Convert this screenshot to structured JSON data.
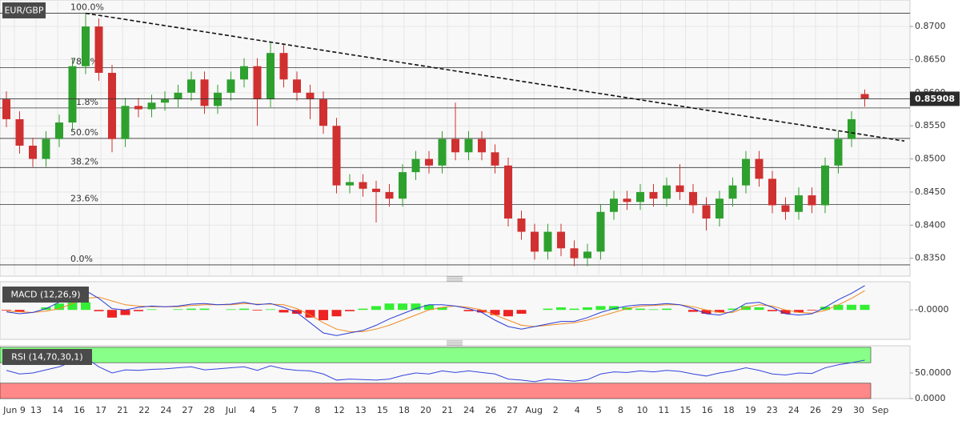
{
  "chart_data": {
    "type": "candlestick",
    "title": "EUR/GBP",
    "x_labels": [
      "Jun 9",
      "13",
      "14",
      "16",
      "17",
      "21",
      "22",
      "24",
      "27",
      "28",
      "Jul",
      "4",
      "5",
      "7",
      "8",
      "12",
      "13",
      "15",
      "18",
      "20",
      "21",
      "24",
      "26",
      "27",
      "Aug",
      "2",
      "4",
      "5",
      "8",
      "10",
      "11",
      "15",
      "16",
      "18",
      "19",
      "23",
      "24",
      "26",
      "29",
      "30",
      "Sep"
    ],
    "open": [
      0.859,
      0.856,
      0.852,
      0.85,
      0.853,
      0.8555,
      0.864,
      0.87,
      0.863,
      0.853,
      0.858,
      0.8575,
      0.8585,
      0.859,
      0.86,
      0.862,
      0.858,
      0.86,
      0.862,
      0.864,
      0.859,
      0.866,
      0.862,
      0.86,
      0.859,
      0.855,
      0.846,
      0.8465,
      0.8455,
      0.845,
      0.844,
      0.848,
      0.85,
      0.849,
      0.853,
      0.851,
      0.853,
      0.851,
      0.849,
      0.841,
      0.839,
      0.836,
      0.839,
      0.8365,
      0.835,
      0.836,
      0.842,
      0.844,
      0.8435,
      0.845,
      0.844,
      0.846,
      0.845,
      0.843,
      0.841,
      0.844,
      0.846,
      0.85,
      0.847,
      0.843,
      0.842,
      0.8445,
      0.843,
      0.849,
      0.853,
      0.8598
    ],
    "high": [
      0.8602,
      0.8572,
      0.8532,
      0.8542,
      0.8567,
      0.8652,
      0.872,
      0.8712,
      0.8642,
      0.8592,
      0.8592,
      0.8597,
      0.8602,
      0.8612,
      0.8632,
      0.8632,
      0.8612,
      0.8632,
      0.8652,
      0.8652,
      0.8675,
      0.8672,
      0.8632,
      0.8612,
      0.8602,
      0.8562,
      0.8477,
      0.8477,
      0.8467,
      0.8462,
      0.8492,
      0.8512,
      0.8512,
      0.8542,
      0.8585,
      0.8542,
      0.8542,
      0.8522,
      0.8502,
      0.8422,
      0.8402,
      0.8402,
      0.8402,
      0.8377,
      0.8372,
      0.8432,
      0.8452,
      0.8452,
      0.8462,
      0.8462,
      0.8472,
      0.8492,
      0.8462,
      0.8442,
      0.8452,
      0.8472,
      0.8512,
      0.8512,
      0.8482,
      0.8442,
      0.8457,
      0.8457,
      0.8502,
      0.8542,
      0.8572,
      0.8605
    ],
    "low": [
      0.8548,
      0.8508,
      0.8488,
      0.8488,
      0.8518,
      0.8543,
      0.8628,
      0.8618,
      0.851,
      0.8518,
      0.8563,
      0.8563,
      0.8573,
      0.8578,
      0.8588,
      0.8568,
      0.8568,
      0.8588,
      0.8608,
      0.855,
      0.8578,
      0.8608,
      0.8588,
      0.856,
      0.8538,
      0.8448,
      0.8448,
      0.8443,
      0.8404,
      0.8428,
      0.8428,
      0.8468,
      0.8478,
      0.8478,
      0.8498,
      0.8498,
      0.8498,
      0.8478,
      0.8398,
      0.8378,
      0.8348,
      0.8348,
      0.8353,
      0.8338,
      0.8338,
      0.8348,
      0.8408,
      0.8423,
      0.8423,
      0.8428,
      0.8428,
      0.8438,
      0.8418,
      0.8392,
      0.8398,
      0.8428,
      0.8448,
      0.8458,
      0.8418,
      0.8408,
      0.8408,
      0.8418,
      0.8418,
      0.8478,
      0.8518,
      0.8579
    ],
    "close": [
      0.856,
      0.852,
      0.85,
      0.853,
      0.8555,
      0.864,
      0.87,
      0.863,
      0.853,
      0.858,
      0.8575,
      0.8585,
      0.859,
      0.86,
      0.862,
      0.858,
      0.86,
      0.862,
      0.864,
      0.859,
      0.866,
      0.862,
      0.86,
      0.859,
      0.855,
      0.846,
      0.8465,
      0.8455,
      0.845,
      0.844,
      0.848,
      0.85,
      0.849,
      0.853,
      0.851,
      0.853,
      0.851,
      0.849,
      0.841,
      0.839,
      0.836,
      0.839,
      0.8365,
      0.835,
      0.836,
      0.842,
      0.844,
      0.8435,
      0.845,
      0.844,
      0.846,
      0.845,
      0.843,
      0.841,
      0.844,
      0.846,
      0.85,
      0.847,
      0.843,
      0.842,
      0.8445,
      0.843,
      0.849,
      0.853,
      0.856,
      0.8591
    ],
    "up_color": "#2ea02e",
    "down_color": "#d03030",
    "ylim": [
      0.8323,
      0.874
    ],
    "yticks": [
      {
        "value": 0.835,
        "label": "0.8350"
      },
      {
        "value": 0.84,
        "label": "0.8400"
      },
      {
        "value": 0.845,
        "label": "0.8450"
      },
      {
        "value": 0.85,
        "label": "0.8500"
      },
      {
        "value": 0.855,
        "label": "0.8550"
      },
      {
        "value": 0.86,
        "label": "0.8600"
      },
      {
        "value": 0.865,
        "label": "0.8650"
      },
      {
        "value": 0.87,
        "label": "0.8700"
      }
    ],
    "grid": true,
    "current_price": {
      "value": 0.85908,
      "label": "0.85908"
    },
    "fib_levels": [
      {
        "value": 0.872,
        "label": "100.0%"
      },
      {
        "value": 0.8638,
        "label": "78.6%"
      },
      {
        "value": 0.8577,
        "label": "61.8%"
      },
      {
        "value": 0.8531,
        "label": "50.0%"
      },
      {
        "value": 0.8487,
        "label": "38.2%"
      },
      {
        "value": 0.8431,
        "label": "23.6%"
      },
      {
        "value": 0.834,
        "label": "0.0%"
      }
    ],
    "trendline": {
      "start": [
        6,
        0.872
      ],
      "end": [
        68,
        0.8527
      ]
    },
    "macd": {
      "title": "MACD (12,26,9)",
      "ylim": [
        -0.0046,
        0.0044
      ],
      "yticks": [
        {
          "value": 0,
          "label": "-0.0000"
        }
      ],
      "macd_color": "#2b3bd6",
      "signal_color": "#f08a24",
      "pos_color": "#33ee33",
      "neg_color": "#ee2222",
      "macd": [
        -0.0003,
        -0.0006,
        -0.0004,
        0.0002,
        0.0012,
        0.0028,
        0.003,
        0.0018,
        0.0002,
        0.0,
        0.0004,
        0.0006,
        0.0005,
        0.0006,
        0.0009,
        0.001,
        0.0008,
        0.0009,
        0.0012,
        0.0008,
        0.001,
        0.0004,
        -0.0004,
        -0.002,
        -0.0036,
        -0.004,
        -0.0036,
        -0.0032,
        -0.0024,
        -0.0014,
        -0.0006,
        0.0002,
        0.0008,
        0.0008,
        0.0006,
        0.0002,
        -0.0004,
        -0.0016,
        -0.0026,
        -0.003,
        -0.0026,
        -0.0022,
        -0.0018,
        -0.0018,
        -0.0012,
        -0.0004,
        0.0002,
        0.0006,
        0.0008,
        0.0008,
        0.001,
        0.0008,
        0.0002,
        -0.0006,
        -0.0008,
        -0.0002,
        0.001,
        0.0012,
        0.0004,
        -0.0006,
        -0.0008,
        -0.0006,
        0.0004,
        0.0016,
        0.0026,
        0.0038
      ],
      "signal": [
        -0.0002,
        -0.0003,
        -0.0004,
        -0.0002,
        0.0002,
        0.001,
        0.0018,
        0.002,
        0.0014,
        0.0008,
        0.0006,
        0.0005,
        0.0005,
        0.0005,
        0.0007,
        0.0008,
        0.0008,
        0.0008,
        0.001,
        0.0009,
        0.0009,
        0.0008,
        0.0002,
        -0.0008,
        -0.002,
        -0.003,
        -0.0034,
        -0.0034,
        -0.003,
        -0.0024,
        -0.0016,
        -0.0008,
        0.0,
        0.0004,
        0.0006,
        0.0004,
        0.0,
        -0.0008,
        -0.0016,
        -0.0024,
        -0.0026,
        -0.0024,
        -0.0022,
        -0.002,
        -0.0016,
        -0.001,
        -0.0004,
        0.0002,
        0.0006,
        0.0007,
        0.0008,
        0.0008,
        0.0005,
        0.0,
        -0.0004,
        -0.0004,
        0.0004,
        0.0008,
        0.0006,
        0.0,
        -0.0004,
        -0.0005,
        -0.0001,
        0.0008,
        0.0018,
        0.003
      ],
      "histogram": [
        -0.0001,
        -0.0003,
        0.0,
        0.0004,
        0.001,
        0.0018,
        0.0012,
        -0.0002,
        -0.0012,
        -0.0008,
        -0.0002,
        0.0001,
        0.0,
        0.0001,
        0.0002,
        0.0002,
        0.0,
        0.0001,
        0.0002,
        -0.0001,
        0.0001,
        -0.0004,
        -0.0006,
        -0.0012,
        -0.0016,
        -0.001,
        -0.0002,
        0.0002,
        0.0006,
        0.001,
        0.001,
        0.001,
        0.0008,
        0.0004,
        0.0,
        -0.0002,
        -0.0004,
        -0.0008,
        -0.001,
        -0.0006,
        0.0,
        0.0002,
        0.0004,
        0.0002,
        0.0004,
        0.0006,
        0.0006,
        0.0004,
        0.0002,
        0.0001,
        0.0002,
        0.0,
        -0.0003,
        -0.0006,
        -0.0004,
        0.0002,
        0.0006,
        0.0004,
        -0.0002,
        -0.0006,
        -0.0004,
        -0.0001,
        0.0005,
        0.0008,
        0.0008,
        0.0008
      ]
    },
    "rsi": {
      "title": "RSI (14,70,30,1)",
      "ylim": [
        0,
        103
      ],
      "yticks": [
        {
          "value": 0,
          "label": "0.0000"
        },
        {
          "value": 50,
          "label": "50.0000"
        }
      ],
      "overbought": 70,
      "oversold": 30,
      "top": 100,
      "color": "#3344dd",
      "overbought_color": "#88ff88",
      "oversold_color": "#ff8888",
      "values": [
        55,
        48,
        50,
        56,
        62,
        72,
        80,
        62,
        50,
        56,
        55,
        57,
        58,
        60,
        62,
        56,
        58,
        60,
        62,
        55,
        64,
        58,
        55,
        54,
        48,
        36,
        38,
        37,
        36,
        38,
        45,
        50,
        48,
        54,
        51,
        54,
        51,
        48,
        38,
        36,
        33,
        38,
        36,
        34,
        37,
        48,
        52,
        51,
        54,
        52,
        55,
        53,
        48,
        44,
        50,
        54,
        60,
        55,
        48,
        46,
        50,
        49,
        60,
        66,
        70,
        75
      ]
    }
  }
}
